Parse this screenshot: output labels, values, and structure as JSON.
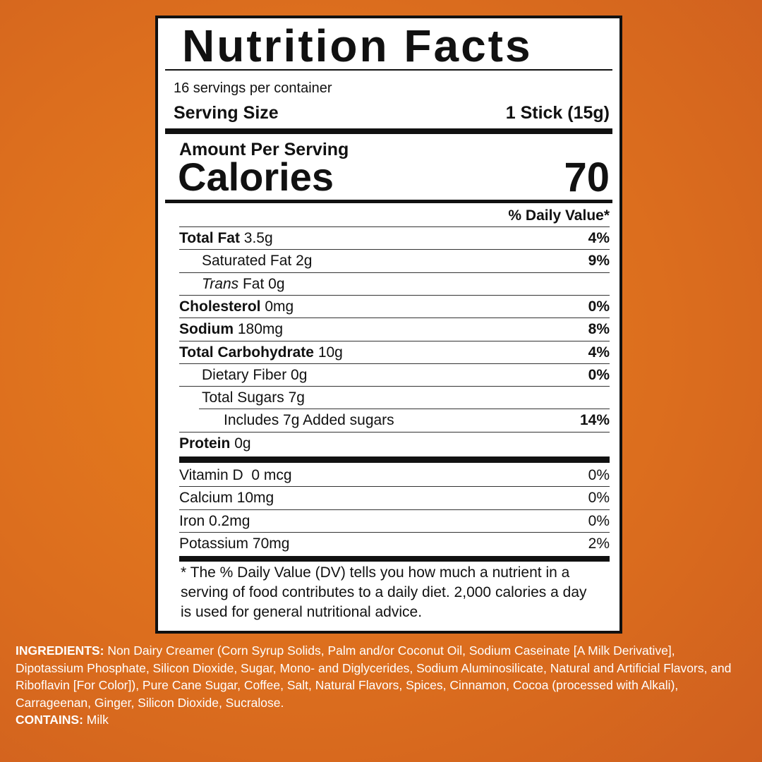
{
  "label": {
    "title": "Nutrition Facts",
    "servings": "16 servings per container",
    "serving_size": {
      "label": "Serving Size",
      "value": "1 Stick (15g)"
    },
    "amount_per_serving": "Amount Per Serving",
    "calories": {
      "label": "Calories",
      "value": "70"
    },
    "daily_value_header": "% Daily Value*",
    "nutrients": [
      {
        "name": "Total Fat",
        "amount": "3.5g",
        "dv": "4%"
      },
      {
        "name": "Saturated Fat",
        "amount": "2g",
        "dv": "9%"
      },
      {
        "prefix": "Trans",
        "name": "Fat",
        "amount": "0g"
      },
      {
        "name": "Cholesterol",
        "amount": "0mg",
        "dv": "0%"
      },
      {
        "name": "Sodium",
        "amount": "180mg",
        "dv": "8%"
      },
      {
        "name": "Total Carbohydrate",
        "amount": "10g",
        "dv": "4%"
      },
      {
        "name": "Dietary Fiber",
        "amount": "0g",
        "dv": "0%"
      },
      {
        "name": "Total Sugars",
        "amount": "7g"
      },
      {
        "name": "Includes 7g Added sugars",
        "dv": "14%"
      },
      {
        "name": "Protein",
        "amount": "0g"
      }
    ],
    "micronutrients": [
      {
        "name": "Vitamin D",
        "amount": "0 mcg",
        "dv": "0%"
      },
      {
        "name": "Calcium",
        "amount": "10mg",
        "dv": "0%"
      },
      {
        "name": "Iron",
        "amount": "0.2mg",
        "dv": "0%"
      },
      {
        "name": "Potassium",
        "amount": "70mg",
        "dv": "2%"
      }
    ],
    "footnote": "* The % Daily Value (DV) tells you how much a nutrient in a serving of food contributes to a daily diet. 2,000 calories a day is used for general nutritional advice."
  },
  "ingredients": {
    "label": "INGREDIENTS:",
    "text": "Non Dairy Creamer (Corn Syrup Solids, Palm and/or Coconut Oil, Sodium Caseinate [A Milk Derivative], Dipotassium Phosphate, Silicon Dioxide, Sugar, Mono- and Diglycerides, Sodium Aluminosilicate, Natural and Artificial Flavors, and Riboflavin [For Color]), Pure Cane Sugar, Coffee, Salt, Natural Flavors, Spices, Cinnamon, Cocoa (processed with Alkali), Carrageenan, Ginger, Silicon Dioxide, Sucralose.",
    "contains_label": "CONTAINS:",
    "contains": "Milk"
  }
}
